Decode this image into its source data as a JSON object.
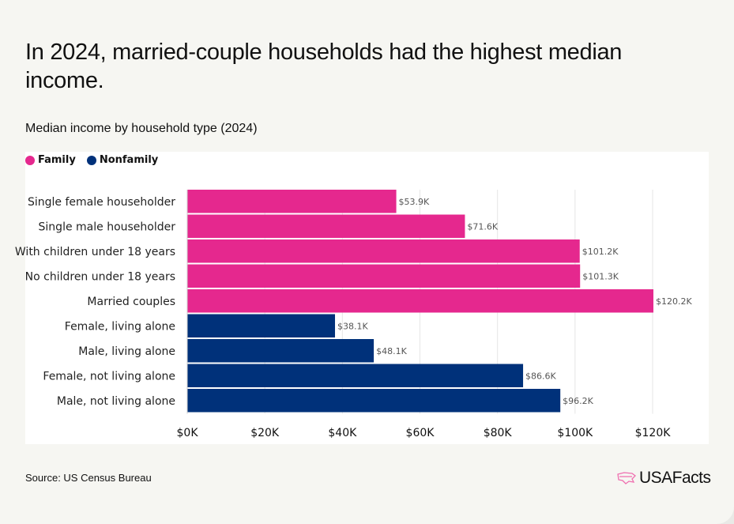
{
  "title": "In 2024, married-couple households had the highest median income.",
  "subtitle": "Median income by household type (2024)",
  "source": "Source: US Census Bureau",
  "logo": "USAFacts",
  "colors": {
    "Family": "#e5288e",
    "Nonfamily": "#00317a"
  },
  "chart_data": {
    "type": "bar",
    "orientation": "horizontal",
    "title": "Median income by household type (2024)",
    "legend": [
      {
        "name": "Family",
        "color": "#e5288e"
      },
      {
        "name": "Nonfamily",
        "color": "#00317a"
      }
    ],
    "legend_position": "top-left",
    "categories": [
      "Single female householder",
      "Single male householder",
      "With children under 18 years",
      "No children under 18 years",
      "Married couples",
      "Female, living alone",
      "Male, living alone",
      "Female, not living alone",
      "Male, not living alone"
    ],
    "groups": [
      "Family",
      "Family",
      "Family",
      "Family",
      "Family",
      "Nonfamily",
      "Nonfamily",
      "Nonfamily",
      "Nonfamily"
    ],
    "values": [
      53.9,
      71.6,
      101.2,
      101.3,
      120.2,
      38.1,
      48.1,
      86.6,
      96.2
    ],
    "value_labels": [
      "$53.9K",
      "$71.6K",
      "$101.2K",
      "$101.3K",
      "$120.2K",
      "$38.1K",
      "$48.1K",
      "$86.6K",
      "$96.2K"
    ],
    "xlim": [
      0,
      120
    ],
    "xticks": [
      0,
      20,
      40,
      60,
      80,
      100,
      120
    ],
    "xtick_labels": [
      "$0K",
      "$20K",
      "$40K",
      "$60K",
      "$80K",
      "$100K",
      "$120K"
    ],
    "grid": true
  }
}
